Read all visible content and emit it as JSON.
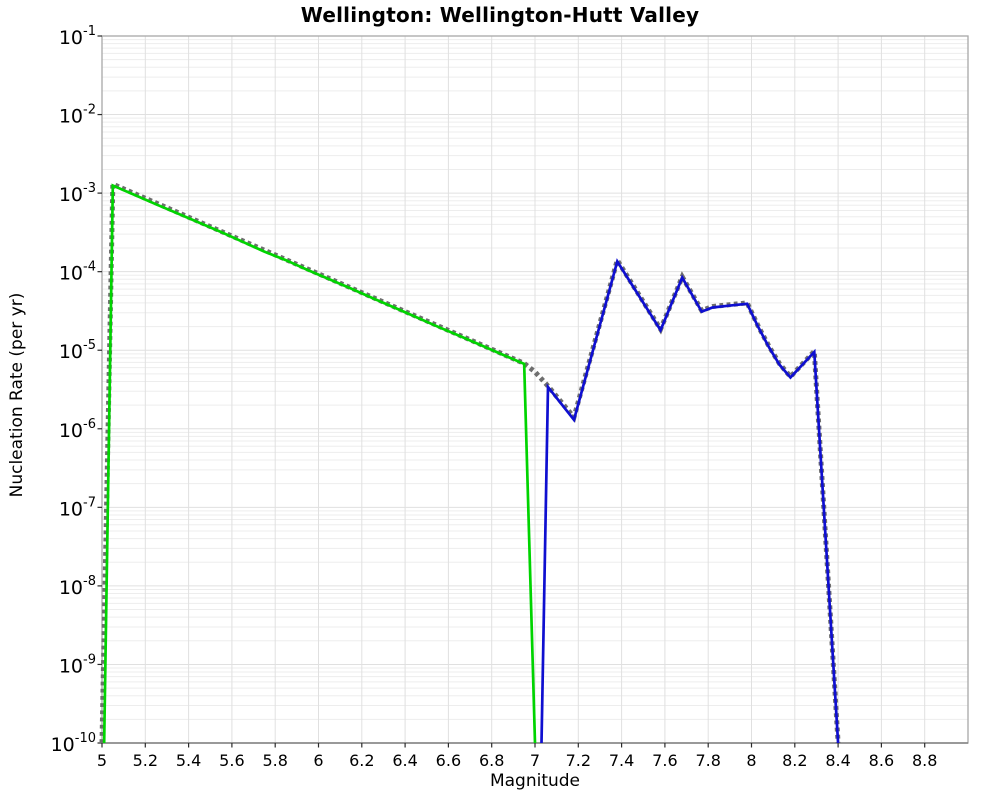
{
  "chart_data": {
    "type": "line",
    "title": "Wellington: Wellington-Hutt Valley",
    "xlabel": "Magnitude",
    "ylabel": "Nucleation Rate (per yr)",
    "x_range": [
      5.0,
      9.0
    ],
    "y_log_range_exponents": [
      -10,
      -1
    ],
    "y_scale": "log",
    "grid": true,
    "legend": "none",
    "x_tick_labels": [
      "5",
      "5.2",
      "5.4",
      "5.6",
      "5.8",
      "6",
      "6.2",
      "6.4",
      "6.6",
      "6.8",
      "7",
      "7.2",
      "7.4",
      "7.6",
      "7.8",
      "8",
      "8.2",
      "8.4",
      "8.6",
      "8.8"
    ],
    "y_tick_exponents": [
      -1,
      -2,
      -3,
      -4,
      -5,
      -6,
      -7,
      -8,
      -9,
      -10
    ],
    "colors": {
      "minor_grid": "#ededed",
      "major_grid": "#e0e0e0",
      "border": "#a8a8a8",
      "bottom_axis": "#808080",
      "tick": "#2b2b2b"
    },
    "series": [
      {
        "name": "gray-dotted-line",
        "color": "#6e6e6e",
        "style": "dotted",
        "points": [
          [
            5.0,
            1e-10
          ],
          [
            5.05,
            0.0013
          ],
          [
            6.95,
            6.8e-06
          ],
          [
            7.0,
            5.3e-06
          ],
          [
            7.06,
            3.5e-06
          ],
          [
            7.18,
            1.4e-06
          ],
          [
            7.38,
            0.00014
          ],
          [
            7.58,
            1.85e-05
          ],
          [
            7.68,
            8.6e-05
          ],
          [
            7.77,
            3.2e-05
          ],
          [
            7.82,
            3.6e-05
          ],
          [
            7.9,
            3.8e-05
          ],
          [
            7.98,
            4e-05
          ],
          [
            8.03,
            2.05e-05
          ],
          [
            8.08,
            1.13e-05
          ],
          [
            8.13,
            6.7e-06
          ],
          [
            8.18,
            4.6e-06
          ],
          [
            8.29,
            9.7e-06
          ],
          [
            8.4,
            1e-10
          ]
        ]
      },
      {
        "name": "green-solid-line",
        "color": "#00d400",
        "style": "solid",
        "points": [
          [
            5.01,
            1e-10
          ],
          [
            5.05,
            0.00125
          ],
          [
            5.15,
            0.00095
          ],
          [
            5.25,
            0.00072
          ],
          [
            5.35,
            0.00055
          ],
          [
            5.45,
            0.00042
          ],
          [
            5.55,
            0.00032
          ],
          [
            5.65,
            0.00024
          ],
          [
            5.75,
            0.00018
          ],
          [
            5.85,
            0.00014
          ],
          [
            5.95,
            0.000105
          ],
          [
            6.05,
            8e-05
          ],
          [
            6.15,
            6.1e-05
          ],
          [
            6.25,
            4.6e-05
          ],
          [
            6.35,
            3.5e-05
          ],
          [
            6.45,
            2.65e-05
          ],
          [
            6.55,
            2e-05
          ],
          [
            6.65,
            1.53e-05
          ],
          [
            6.75,
            1.16e-05
          ],
          [
            6.85,
            8.8e-06
          ],
          [
            6.95,
            6.7e-06
          ],
          [
            7.0,
            1e-10
          ]
        ]
      },
      {
        "name": "blue-solid-line",
        "color": "#0f0fd0",
        "style": "solid",
        "points": [
          [
            7.03,
            1e-10
          ],
          [
            7.06,
            3.4e-06
          ],
          [
            7.18,
            1.3e-06
          ],
          [
            7.38,
            0.000135
          ],
          [
            7.58,
            1.8e-05
          ],
          [
            7.68,
            8.4e-05
          ],
          [
            7.77,
            3.1e-05
          ],
          [
            7.82,
            3.5e-05
          ],
          [
            7.9,
            3.7e-05
          ],
          [
            7.98,
            3.9e-05
          ],
          [
            8.03,
            2e-05
          ],
          [
            8.08,
            1.1e-05
          ],
          [
            8.13,
            6.5e-06
          ],
          [
            8.18,
            4.5e-06
          ],
          [
            8.29,
            9.5e-06
          ],
          [
            8.4,
            1e-10
          ]
        ]
      }
    ]
  }
}
